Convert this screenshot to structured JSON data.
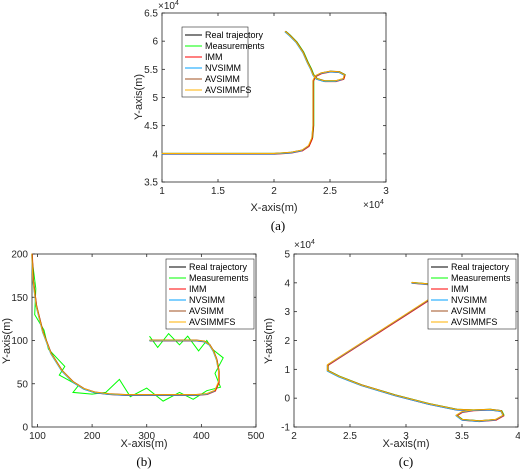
{
  "chart_data": [
    {
      "type": "line",
      "caption": "(a)",
      "xlabel": "X-axis(m)",
      "ylabel": "Y-axis(m)",
      "xlim": [
        1,
        3
      ],
      "ylim": [
        3.5,
        6.5
      ],
      "xticks": [
        "1",
        "1.5",
        "2",
        "2.5",
        "3"
      ],
      "yticks": [
        "3.5",
        "4",
        "4.5",
        "5",
        "5.5",
        "6",
        "6.5"
      ],
      "x_multiplier": "×10^4",
      "y_multiplier": "×10^4",
      "legend_position": "top-left",
      "series": [
        {
          "name": "Real trajectory",
          "color": "#000000"
        },
        {
          "name": "Measurements",
          "color": "#00ff00"
        },
        {
          "name": "IMM",
          "color": "#ff0000"
        },
        {
          "name": "NVSIMM",
          "color": "#00a0ff"
        },
        {
          "name": "AVSIMM",
          "color": "#a05020"
        },
        {
          "name": "AVSIMMFS",
          "color": "#ffb000"
        }
      ],
      "points": [
        [
          1.0,
          4.0
        ],
        [
          1.4,
          4.0
        ],
        [
          1.8,
          4.0
        ],
        [
          2.0,
          4.0
        ],
        [
          2.15,
          4.02
        ],
        [
          2.25,
          4.06
        ],
        [
          2.31,
          4.14
        ],
        [
          2.34,
          4.28
        ],
        [
          2.35,
          4.5
        ],
        [
          2.35,
          4.8
        ],
        [
          2.35,
          5.1
        ],
        [
          2.35,
          5.3
        ],
        [
          2.37,
          5.38
        ],
        [
          2.42,
          5.43
        ],
        [
          2.5,
          5.46
        ],
        [
          2.58,
          5.45
        ],
        [
          2.63,
          5.4
        ],
        [
          2.62,
          5.33
        ],
        [
          2.55,
          5.29
        ],
        [
          2.45,
          5.29
        ],
        [
          2.38,
          5.33
        ],
        [
          2.35,
          5.4
        ],
        [
          2.33,
          5.5
        ],
        [
          2.3,
          5.62
        ],
        [
          2.26,
          5.8
        ],
        [
          2.2,
          5.98
        ],
        [
          2.14,
          6.1
        ],
        [
          2.1,
          6.17
        ]
      ]
    },
    {
      "type": "line",
      "caption": "(b)",
      "xlabel": "X-axis(m)",
      "ylabel": "Y-axis(m)",
      "xlim": [
        90,
        500
      ],
      "ylim": [
        0,
        200
      ],
      "xticks": [
        "100",
        "200",
        "300",
        "400",
        "500"
      ],
      "yticks": [
        "0",
        "50",
        "100",
        "150",
        "200"
      ],
      "legend_position": "top-right",
      "series": [
        {
          "name": "Real trajectory",
          "color": "#000000"
        },
        {
          "name": "Measurements",
          "color": "#00ff00"
        },
        {
          "name": "IMM",
          "color": "#ff0000"
        },
        {
          "name": "NVSIMM",
          "color": "#00a0ff"
        },
        {
          "name": "AVSIMM",
          "color": "#a05020"
        },
        {
          "name": "AVSIMMFS",
          "color": "#ffb000"
        }
      ],
      "points": [
        [
          90,
          200
        ],
        [
          92,
          170
        ],
        [
          98,
          140
        ],
        [
          110,
          110
        ],
        [
          125,
          85
        ],
        [
          145,
          65
        ],
        [
          165,
          52
        ],
        [
          185,
          44
        ],
        [
          205,
          40
        ],
        [
          230,
          38
        ],
        [
          260,
          37
        ],
        [
          300,
          37
        ],
        [
          350,
          37
        ],
        [
          390,
          37
        ],
        [
          410,
          38
        ],
        [
          425,
          42
        ],
        [
          432,
          52
        ],
        [
          432,
          65
        ],
        [
          428,
          78
        ],
        [
          422,
          88
        ],
        [
          415,
          95
        ],
        [
          405,
          99
        ],
        [
          390,
          100
        ],
        [
          360,
          100
        ],
        [
          330,
          100
        ],
        [
          305,
          100
        ]
      ],
      "measurements": [
        [
          90,
          195
        ],
        [
          97,
          160
        ],
        [
          95,
          130
        ],
        [
          112,
          112
        ],
        [
          120,
          90
        ],
        [
          150,
          70
        ],
        [
          140,
          60
        ],
        [
          175,
          48
        ],
        [
          165,
          40
        ],
        [
          200,
          38
        ],
        [
          225,
          40
        ],
        [
          250,
          55
        ],
        [
          270,
          35
        ],
        [
          300,
          45
        ],
        [
          330,
          30
        ],
        [
          360,
          40
        ],
        [
          385,
          32
        ],
        [
          410,
          42
        ],
        [
          435,
          46
        ],
        [
          425,
          62
        ],
        [
          440,
          80
        ],
        [
          420,
          90
        ],
        [
          410,
          100
        ],
        [
          395,
          88
        ],
        [
          375,
          105
        ],
        [
          360,
          95
        ],
        [
          340,
          108
        ],
        [
          320,
          92
        ],
        [
          305,
          105
        ]
      ]
    },
    {
      "type": "line",
      "caption": "(c)",
      "xlabel": "X-axis(m)",
      "ylabel": "Y-axis(m)",
      "xlim": [
        2,
        4
      ],
      "ylim": [
        -1,
        5
      ],
      "xticks": [
        "2",
        "2.5",
        "3",
        "3.5",
        "4"
      ],
      "yticks": [
        "-1",
        "0",
        "1",
        "2",
        "3",
        "4",
        "5"
      ],
      "x_multiplier": "×10^4",
      "y_multiplier": "×10^4",
      "legend_position": "top-right",
      "series": [
        {
          "name": "Real trajectory",
          "color": "#000000"
        },
        {
          "name": "Measurements",
          "color": "#00ff00"
        },
        {
          "name": "IMM",
          "color": "#ff0000"
        },
        {
          "name": "NVSIMM",
          "color": "#00a0ff"
        },
        {
          "name": "AVSIMM",
          "color": "#a05020"
        },
        {
          "name": "AVSIMMFS",
          "color": "#ffb000"
        }
      ],
      "points": [
        [
          3.05,
          4.0
        ],
        [
          3.2,
          3.95
        ],
        [
          3.28,
          3.75
        ],
        [
          3.2,
          3.4
        ],
        [
          3.0,
          2.9
        ],
        [
          2.8,
          2.4
        ],
        [
          2.6,
          1.9
        ],
        [
          2.4,
          1.4
        ],
        [
          2.3,
          1.15
        ],
        [
          2.3,
          0.95
        ],
        [
          2.4,
          0.75
        ],
        [
          2.6,
          0.45
        ],
        [
          2.9,
          0.1
        ],
        [
          3.2,
          -0.2
        ],
        [
          3.45,
          -0.4
        ],
        [
          3.6,
          -0.42
        ],
        [
          3.75,
          -0.4
        ],
        [
          3.85,
          -0.45
        ],
        [
          3.87,
          -0.6
        ],
        [
          3.8,
          -0.75
        ],
        [
          3.65,
          -0.8
        ],
        [
          3.5,
          -0.75
        ],
        [
          3.45,
          -0.6
        ],
        [
          3.5,
          -0.48
        ],
        [
          3.6,
          -0.42
        ]
      ]
    }
  ]
}
